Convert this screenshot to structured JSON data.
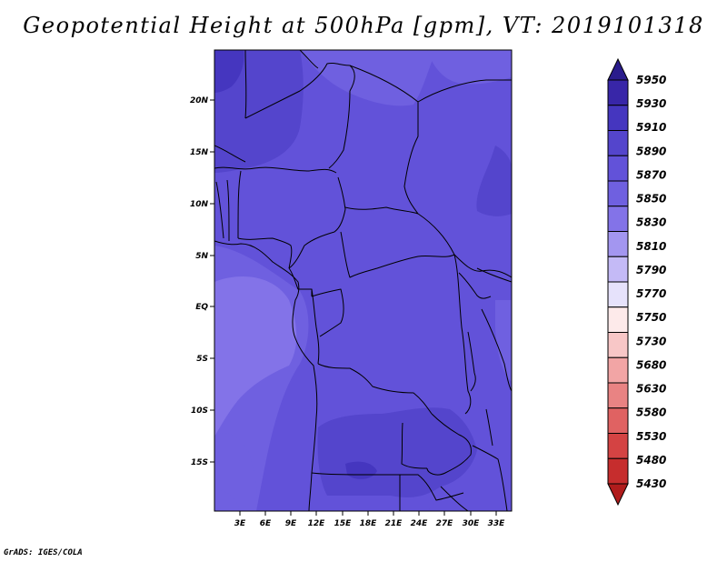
{
  "title": "Geopotential Height at 500hPa [gpm], VT: 2019101318",
  "footer": "GrADS: IGES/COLA",
  "axes": {
    "y_ticks": [
      "20N",
      "15N",
      "10N",
      "5N",
      "EQ",
      "5S",
      "10S",
      "15S"
    ],
    "x_ticks": [
      "3E",
      "6E",
      "9E",
      "12E",
      "15E",
      "18E",
      "21E",
      "24E",
      "27E",
      "30E",
      "33E"
    ]
  },
  "colorbar": {
    "labels": [
      "5950",
      "5930",
      "5910",
      "5890",
      "5870",
      "5850",
      "5830",
      "5810",
      "5790",
      "5770",
      "5750",
      "5730",
      "5680",
      "5630",
      "5580",
      "5530",
      "5480",
      "5430"
    ],
    "colors": [
      "#2a1c8c",
      "#3826a8",
      "#4536bf",
      "#5445cc",
      "#6252d9",
      "#6f60e0",
      "#8373e8",
      "#a396f0",
      "#c4baf6",
      "#e6e2fb",
      "#fdeaea",
      "#f8c7c7",
      "#f2a5a5",
      "#e98383",
      "#e06262",
      "#d44343",
      "#c62d2d",
      "#b01c1c"
    ]
  },
  "map_colors": {
    "c5910": "#4536bf",
    "c5890": "#5445cc",
    "c5870": "#6252d9",
    "c5850": "#6f60e0",
    "c5830": "#8373e8"
  }
}
